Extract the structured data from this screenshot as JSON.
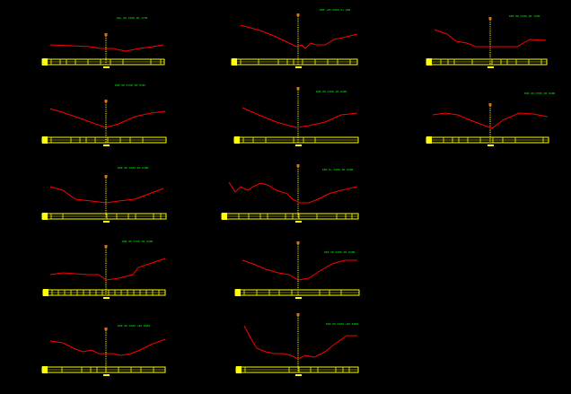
{
  "drawing": {
    "background": "#000000",
    "colors": {
      "profile": "#ff0000",
      "band": "#ffff00",
      "centerline": "#ffff00",
      "label": "#00ff00"
    },
    "sections": [
      {
        "id": "s1",
        "label": "K0+ 00 1200 00 1750"
      },
      {
        "id": "s2",
        "label": "K00 +00 K000 0+ K00"
      },
      {
        "id": "s3",
        "label": "K00 00 K700 00 1200"
      },
      {
        "id": "s4",
        "label": "K00 00 K700 00 K387"
      },
      {
        "id": "s5",
        "label": "K00 00 K100 00 K400"
      },
      {
        "id": "s6",
        "label": "K00 00 K700 00 K400"
      },
      {
        "id": "s7",
        "label": "K00 00 K400 00 K400"
      },
      {
        "id": "s8",
        "label": "K00 K+ K400 00 K400"
      },
      {
        "id": "s9",
        "label": "K00 00 K700 00 K400"
      },
      {
        "id": "s10",
        "label": "K00 00 K400 00 K400"
      },
      {
        "id": "s11",
        "label": "K00 00 K400 +00 K400"
      },
      {
        "id": "s12",
        "label": "K00 00 K400 +00 K400"
      }
    ]
  }
}
